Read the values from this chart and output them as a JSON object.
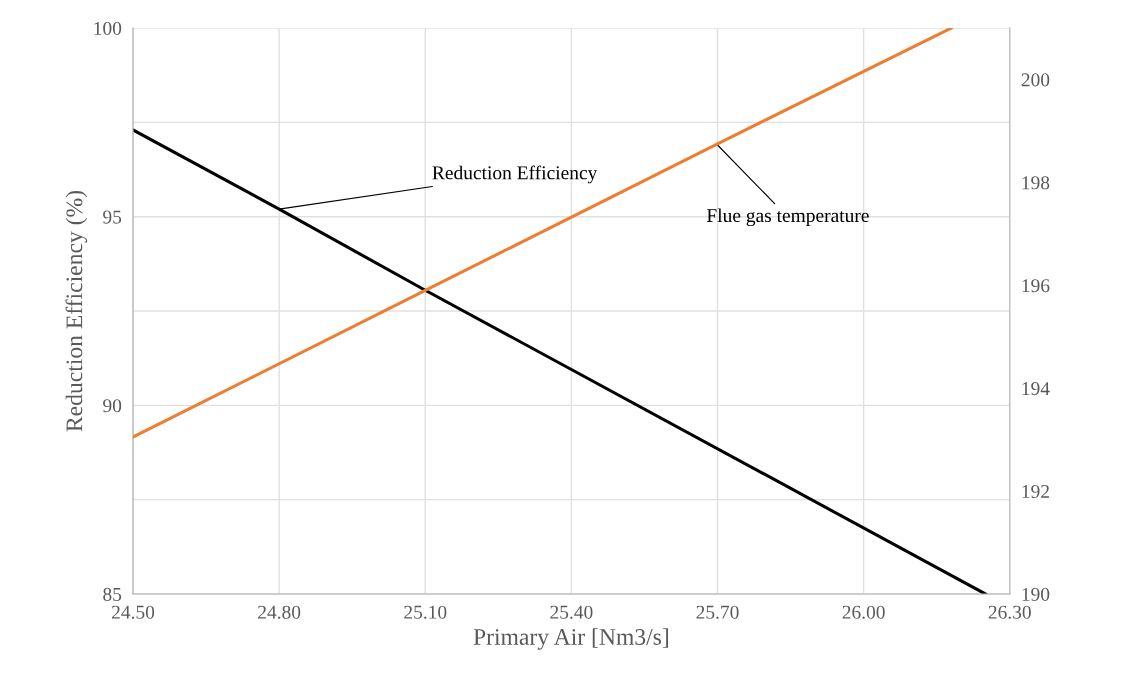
{
  "chart_data": {
    "type": "line",
    "xlabel": "Primary Air [Nm3/s]",
    "ylabel": "Reduction Efficiency (%)",
    "x": [
      24.5,
      24.8,
      25.1,
      26.25
    ],
    "series": [
      {
        "color": "#000000",
        "values": [
          97.3,
          95.2,
          93.05,
          85.0
        ]
      },
      {
        "color": "#ed7d31",
        "axis": "y2",
        "x": [
          24.5,
          25.1,
          25.7,
          26.18
        ],
        "values": [
          193.05,
          195.9,
          198.75,
          201.0
        ]
      }
    ],
    "xlim": [
      24.5,
      26.3
    ],
    "xticks": [
      {
        "value": 24.5,
        "label": "24.50"
      },
      {
        "value": 24.8,
        "label": "24.80"
      },
      {
        "value": 25.1,
        "label": "25.10"
      },
      {
        "value": 25.4,
        "label": "25.40"
      },
      {
        "value": 25.7,
        "label": "25.70"
      },
      {
        "value": 26.0,
        "label": "26.00"
      },
      {
        "value": 26.3,
        "label": "26.30"
      }
    ],
    "ylim": [
      85,
      100
    ],
    "yticks": [
      85,
      {
        "value": 87.5,
        "label": null
      },
      90,
      {
        "value": 92.5,
        "label": null
      },
      95,
      {
        "value": 97.5,
        "label": null
      },
      100
    ],
    "y2lim": [
      190,
      201
    ],
    "y2ticks": [
      190,
      192,
      194,
      196,
      198,
      200
    ],
    "grid": true,
    "marker": "none",
    "line_style": "solid",
    "annotations": [
      {
        "text": "Reduction Efficiency",
        "x": 24.8,
        "y": 95.2
      },
      {
        "text": "Flue gas temperature",
        "x": 25.7,
        "y": 96.9
      }
    ]
  }
}
